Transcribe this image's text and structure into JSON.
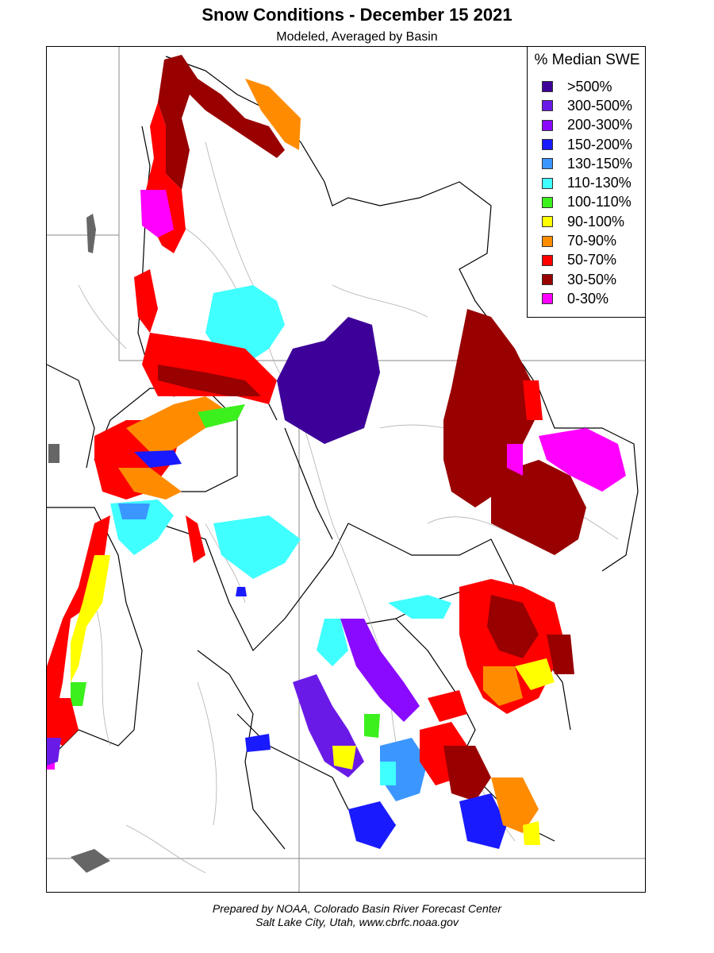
{
  "title": "Snow Conditions - December 15 2021",
  "subtitle": "Modeled, Averaged by Basin",
  "legend": {
    "title": "% Median SWE",
    "items": [
      {
        "label": ">500%",
        "color": "#3d0099"
      },
      {
        "label": "300-500%",
        "color": "#6a1ae6"
      },
      {
        "label": "200-300%",
        "color": "#8a0aff"
      },
      {
        "label": "150-200%",
        "color": "#1a1aff"
      },
      {
        "label": "130-150%",
        "color": "#3b96ff"
      },
      {
        "label": "110-130%",
        "color": "#40ffff"
      },
      {
        "label": "100-110%",
        "color": "#3cf01e"
      },
      {
        "label": "90-100%",
        "color": "#ffff00"
      },
      {
        "label": "70-90%",
        "color": "#ff8c00"
      },
      {
        "label": "50-70%",
        "color": "#ff0000"
      },
      {
        "label": "30-50%",
        "color": "#990000"
      },
      {
        "label": "0-30%",
        "color": "#ff00ff"
      }
    ]
  },
  "footer": {
    "line1": "Prepared by NOAA, Colorado Basin River Forecast Center",
    "line2": "Salt Lake City, Utah, www.cbrfc.noaa.gov"
  },
  "colors": {
    "river": "#b0b0b0",
    "lake": "#666666",
    "basin_border": "#000000",
    "state_line": "#888888"
  }
}
